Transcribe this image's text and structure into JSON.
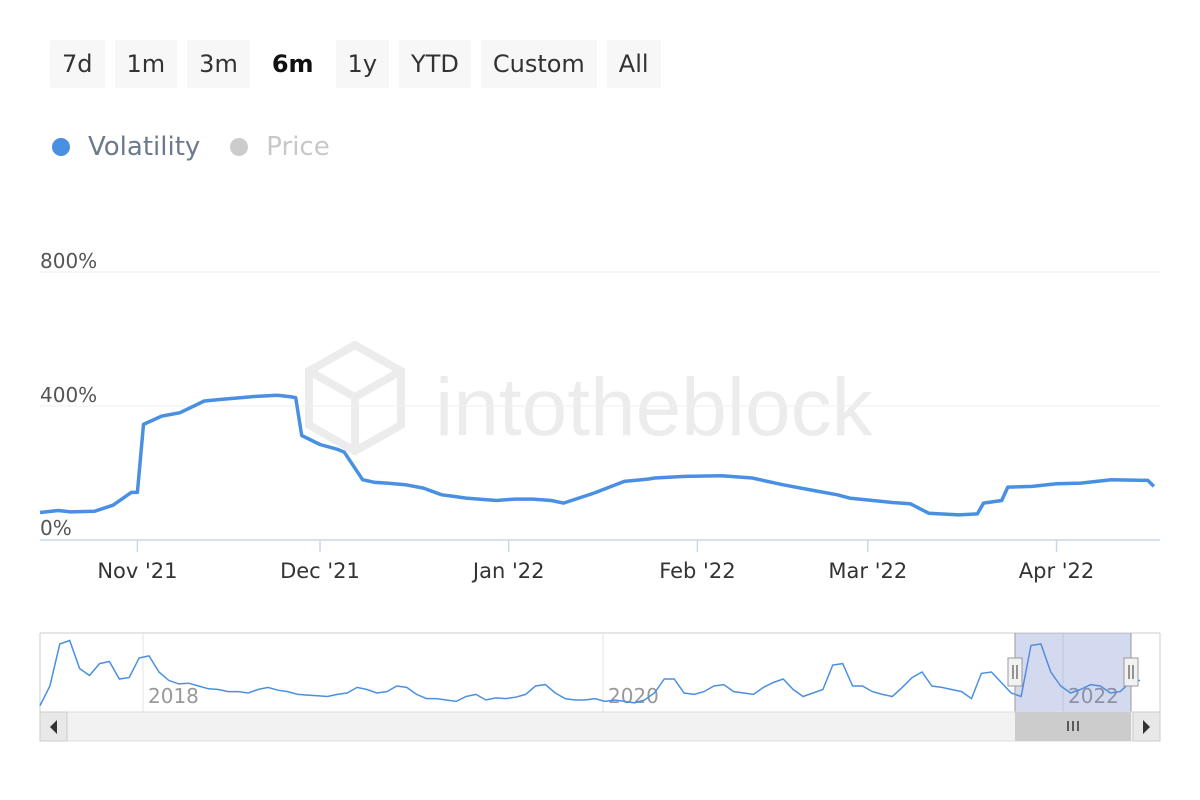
{
  "range_selector": {
    "buttons": [
      "7d",
      "1m",
      "3m",
      "6m",
      "1y",
      "YTD",
      "Custom",
      "All"
    ],
    "active": "6m"
  },
  "legend": [
    {
      "label": "Volatility",
      "color": "#4a90e2",
      "active": true
    },
    {
      "label": "Price",
      "color": "#cccccc",
      "active": false
    }
  ],
  "watermark": "intotheblock",
  "navigator": {
    "labels": [
      "2018",
      "2020",
      "2022"
    ],
    "series": [
      0.02,
      0.3,
      0.9,
      0.95,
      0.55,
      0.45,
      0.62,
      0.65,
      0.4,
      0.42,
      0.7,
      0.73,
      0.5,
      0.38,
      0.33,
      0.34,
      0.3,
      0.26,
      0.25,
      0.22,
      0.22,
      0.2,
      0.25,
      0.28,
      0.24,
      0.22,
      0.18,
      0.17,
      0.16,
      0.15,
      0.18,
      0.2,
      0.28,
      0.25,
      0.2,
      0.22,
      0.3,
      0.28,
      0.18,
      0.12,
      0.12,
      0.1,
      0.08,
      0.15,
      0.18,
      0.1,
      0.13,
      0.12,
      0.14,
      0.18,
      0.3,
      0.32,
      0.2,
      0.12,
      0.1,
      0.1,
      0.12,
      0.08,
      0.1,
      0.08,
      0.06,
      0.1,
      0.2,
      0.4,
      0.4,
      0.2,
      0.18,
      0.22,
      0.3,
      0.32,
      0.22,
      0.2,
      0.18,
      0.28,
      0.35,
      0.4,
      0.25,
      0.15,
      0.2,
      0.25,
      0.6,
      0.62,
      0.3,
      0.3,
      0.22,
      0.18,
      0.15,
      0.28,
      0.42,
      0.5,
      0.3,
      0.28,
      0.25,
      0.22,
      0.12,
      0.48,
      0.5,
      0.35,
      0.2,
      0.15,
      0.88,
      0.9,
      0.5,
      0.3,
      0.2,
      0.25,
      0.32,
      0.3,
      0.2,
      0.22,
      0.35,
      0.38
    ]
  },
  "chart_data": {
    "type": "line",
    "series": [
      {
        "name": "Volatility",
        "color": "#4a90e2",
        "x": [
          "2021-10-16",
          "2021-10-19",
          "2021-10-21",
          "2021-10-25",
          "2021-10-28",
          "2021-10-31",
          "2021-11-01",
          "2021-11-02",
          "2021-11-05",
          "2021-11-08",
          "2021-11-12",
          "2021-11-15",
          "2021-11-20",
          "2021-11-24",
          "2021-11-26",
          "2021-11-27",
          "2021-11-28",
          "2021-12-01",
          "2021-12-04",
          "2021-12-05",
          "2021-12-08",
          "2021-12-10",
          "2021-12-12",
          "2021-12-15",
          "2021-12-18",
          "2021-12-21",
          "2021-12-23",
          "2021-12-25",
          "2021-12-30",
          "2022-01-02",
          "2022-01-05",
          "2022-01-08",
          "2022-01-10",
          "2022-01-15",
          "2022-01-20",
          "2022-01-24",
          "2022-01-25",
          "2022-01-28",
          "2022-01-30",
          "2022-02-05",
          "2022-02-10",
          "2022-02-15",
          "2022-02-20",
          "2022-02-24",
          "2022-02-26",
          "2022-03-05",
          "2022-03-08",
          "2022-03-11",
          "2022-03-16",
          "2022-03-19",
          "2022-03-20",
          "2022-03-23",
          "2022-03-24",
          "2022-03-28",
          "2022-04-01",
          "2022-04-05",
          "2022-04-10",
          "2022-04-16",
          "2022-04-17"
        ],
        "y": [
          82,
          88,
          84,
          86,
          104,
          142,
          142,
          345,
          370,
          380,
          415,
          420,
          428,
          432,
          428,
          425,
          312,
          285,
          270,
          262,
          180,
          172,
          170,
          165,
          155,
          135,
          130,
          125,
          118,
          122,
          122,
          118,
          110,
          140,
          175,
          182,
          185,
          188,
          190,
          192,
          185,
          165,
          148,
          135,
          125,
          112,
          108,
          80,
          75,
          78,
          110,
          118,
          158,
          160,
          168,
          170,
          180,
          178,
          160
        ],
        "y_label_suffix": "%"
      }
    ],
    "xlabel": "",
    "ylabel": "",
    "ylim": [
      0,
      800
    ],
    "yticks": [
      "0%",
      "400%",
      "800%"
    ],
    "ytick_values": [
      0,
      400,
      800
    ],
    "xticks": [
      "Nov '21",
      "Dec '21",
      "Jan '22",
      "Feb '22",
      "Mar '22",
      "Apr '22"
    ],
    "xtick_dates": [
      "2021-11-01",
      "2021-12-01",
      "2022-01-01",
      "2022-02-01",
      "2022-03-01",
      "2022-04-01"
    ],
    "xlim": [
      "2021-10-16",
      "2022-04-18"
    ],
    "grid": true
  }
}
